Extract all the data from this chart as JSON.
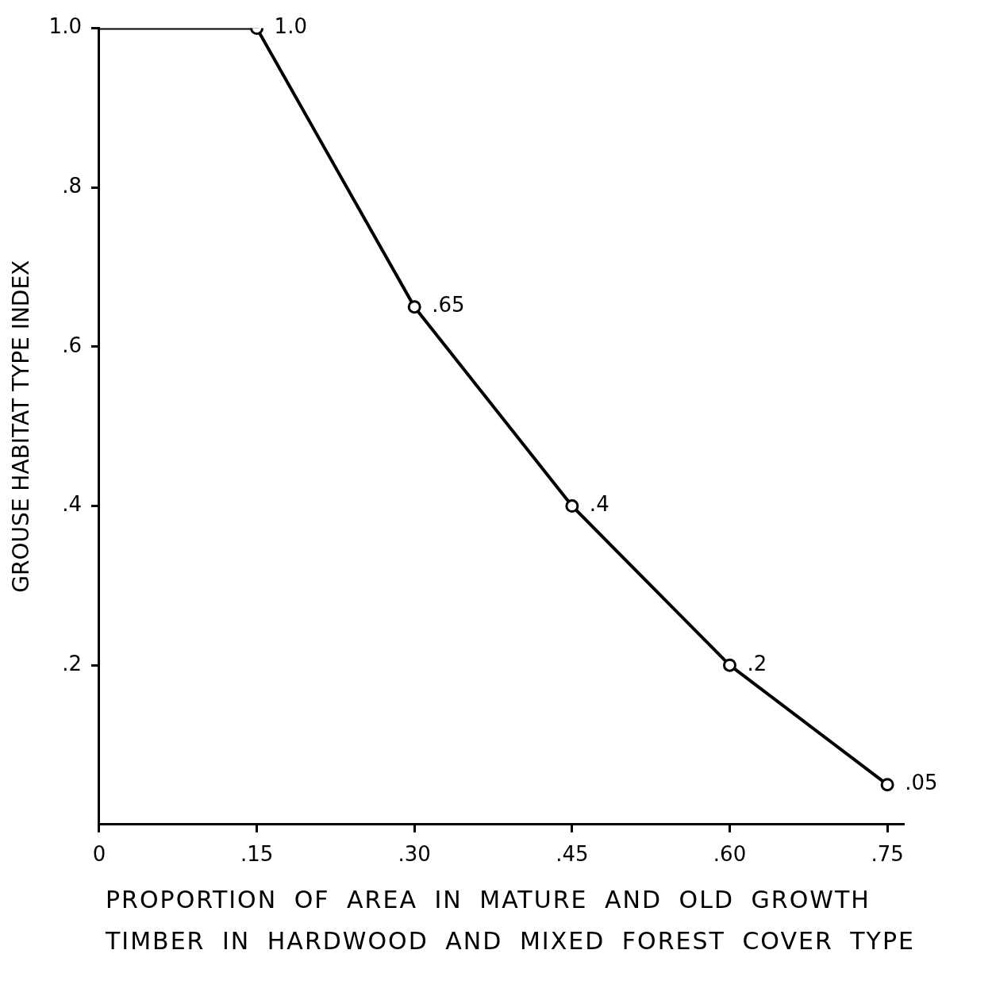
{
  "chart_data": {
    "type": "line",
    "xlabel": "PROPORTION OF AREA IN MATURE AND OLD GROWTH TIMBER IN HARDWOOD AND MIXED FOREST COVER TYPE",
    "ylabel": "GROUSE HABITAT TYPE INDEX",
    "series": [
      {
        "color": "#000000",
        "marker": "circle",
        "x": [
          0,
          0.15,
          0.3,
          0.45,
          0.6,
          0.75
        ],
        "values": [
          1,
          1,
          0.65,
          0.4,
          0.2,
          0.05
        ],
        "value_labels": [
          null,
          "1.0",
          ".65",
          ".4",
          ".2",
          ".05"
        ]
      }
    ],
    "xlim": [
      0,
      0.765
    ],
    "xticks": [
      {
        "value": 0,
        "label": "0"
      },
      {
        "value": 0.15,
        "label": ".15"
      },
      {
        "value": 0.3,
        "label": ".30"
      },
      {
        "value": 0.45,
        "label": ".45"
      },
      {
        "value": 0.6,
        "label": ".60"
      },
      {
        "value": 0.75,
        "label": ".75"
      }
    ],
    "ylim": [
      0,
      1
    ],
    "yticks": [
      {
        "value": 0.2,
        "label": ".2"
      },
      {
        "value": 0.4,
        "label": ".4"
      },
      {
        "value": 0.6,
        "label": ".6"
      },
      {
        "value": 0.8,
        "label": ".8"
      },
      {
        "value": 1,
        "label": "1.0"
      }
    ],
    "grid": false,
    "legend": false
  }
}
